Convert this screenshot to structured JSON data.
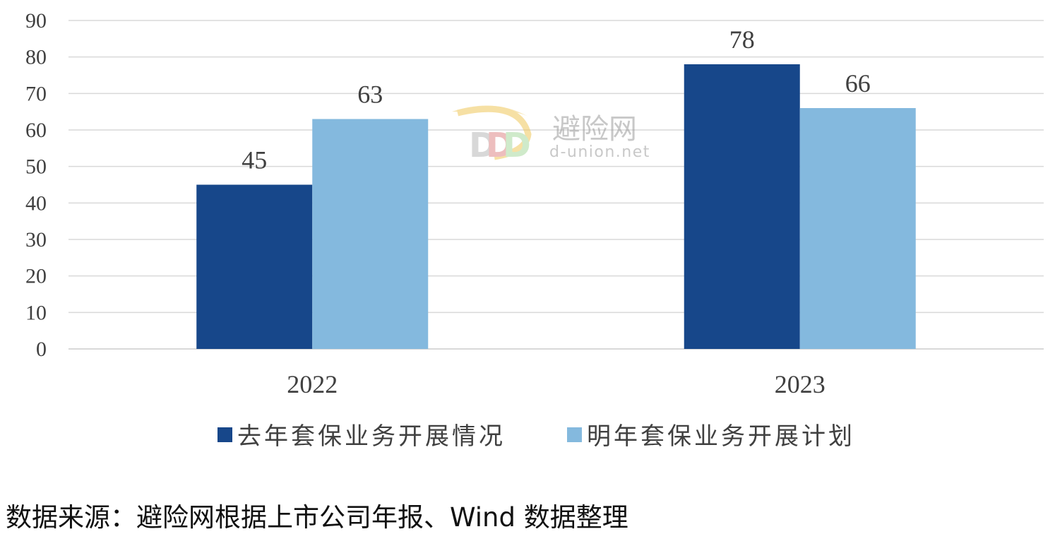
{
  "chart_data": {
    "type": "bar",
    "categories": [
      "2022",
      "2023"
    ],
    "series": [
      {
        "name": "去年套保业务开展情况",
        "values": [
          45,
          78
        ],
        "color": "#17478a"
      },
      {
        "name": "明年套保业务开展计划",
        "values": [
          63,
          66
        ],
        "color": "#84b9de"
      }
    ],
    "ylim": [
      0,
      90
    ],
    "yticks": [
      0,
      10,
      20,
      30,
      40,
      50,
      60,
      70,
      80,
      90
    ],
    "grid": true,
    "legend_position": "bottom",
    "data_labels": true
  },
  "watermark": {
    "brand_text": "避险网",
    "domain_text": "d-union.net"
  },
  "source_note": "数据来源：避险网根据上市公司年报、Wind 数据整理",
  "colors": {
    "axis_text": "#404040",
    "gridline": "#d9d9d9"
  }
}
